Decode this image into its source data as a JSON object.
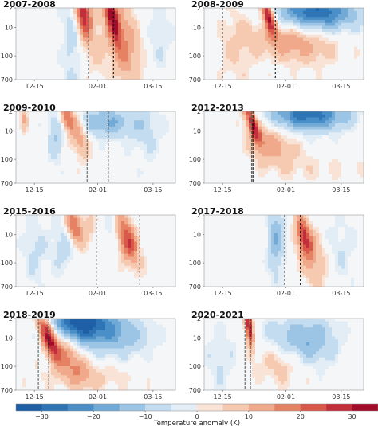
{
  "chart_data": {
    "type": "heatmap",
    "colorbar": {
      "label": "Temperature anomaly (K)",
      "range": [
        -35,
        35
      ],
      "ticks": [
        -30,
        -20,
        -10,
        0,
        10,
        20,
        30
      ],
      "levels": 14,
      "colors": [
        "#1f5fa6",
        "#2e75b6",
        "#4a8fc7",
        "#71aad6",
        "#9cc4e4",
        "#c4dcef",
        "#e3edf6",
        "#f9e3d7",
        "#f6c9b1",
        "#f0a98a",
        "#e68264",
        "#d8584a",
        "#c1303a",
        "#a10c2a"
      ]
    },
    "panels": [
      {
        "title": "2007-2008",
        "x_ticks": [
          "12-15",
          "02-01",
          "03-15"
        ],
        "y_ticks": [
          "2",
          "10",
          "100",
          "700"
        ],
        "y_scale": "log",
        "y_range": [
          700,
          2
        ],
        "event_lines": [
          "01-25",
          "02-13"
        ]
      },
      {
        "title": "2008-2009",
        "x_ticks": [
          "12-15",
          "02-01",
          "03-15"
        ],
        "y_ticks": [
          "2",
          "10",
          "100",
          "700"
        ],
        "y_scale": "log",
        "y_range": [
          700,
          2
        ],
        "event_lines": [
          "12-15",
          "01-24"
        ]
      },
      {
        "title": "2009-2010",
        "x_ticks": [
          "12-15",
          "02-01",
          "03-15"
        ],
        "y_ticks": [
          "2",
          "10",
          "100",
          "700"
        ],
        "y_scale": "log",
        "y_range": [
          700,
          2
        ],
        "event_lines": [
          "01-24",
          "02-09"
        ]
      },
      {
        "title": "2012-2013",
        "x_ticks": [
          "12-15",
          "02-01",
          "03-15"
        ],
        "y_ticks": [
          "2",
          "10",
          "100",
          "700"
        ],
        "y_scale": "log",
        "y_range": [
          700,
          2
        ],
        "event_lines": [
          "01-06",
          "01-07"
        ]
      },
      {
        "title": "2015-2016",
        "x_ticks": [
          "12-15",
          "02-01",
          "03-15"
        ],
        "y_ticks": [
          "2",
          "10",
          "100",
          "700"
        ],
        "y_scale": "log",
        "y_range": [
          700,
          2
        ],
        "event_lines": [
          "01-31",
          "03-05"
        ]
      },
      {
        "title": "2017-2018",
        "x_ticks": [
          "12-15",
          "02-01",
          "03-15"
        ],
        "y_ticks": [
          "2",
          "10",
          "100",
          "700"
        ],
        "y_scale": "log",
        "y_range": [
          700,
          2
        ],
        "event_lines": [
          "01-31",
          "02-12"
        ]
      },
      {
        "title": "2018-2019",
        "x_ticks": [
          "12-15",
          "02-01",
          "03-15"
        ],
        "y_ticks": [
          "2",
          "10",
          "100",
          "700"
        ],
        "y_scale": "log",
        "y_range": [
          700,
          2
        ],
        "event_lines": [
          "12-18",
          "12-26"
        ]
      },
      {
        "title": "2020-2021",
        "x_ticks": [
          "12-15",
          "02-01",
          "03-15"
        ],
        "y_ticks": [
          "2",
          "10",
          "100",
          "700"
        ],
        "y_scale": "log",
        "y_range": [
          700,
          2
        ],
        "event_lines": [
          "01-01",
          "01-05"
        ]
      }
    ]
  }
}
